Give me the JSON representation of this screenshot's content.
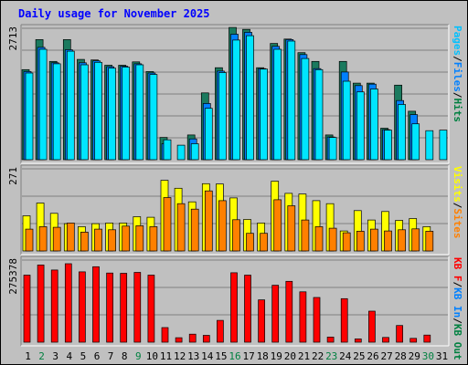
{
  "chart_data": {
    "type": "bar",
    "title": "Daily usage for November 2025",
    "categories": [
      "1",
      "2",
      "3",
      "4",
      "5",
      "6",
      "7",
      "8",
      "9",
      "10",
      "11",
      "12",
      "13",
      "14",
      "15",
      "16",
      "17",
      "18",
      "19",
      "20",
      "21",
      "22",
      "23",
      "24",
      "25",
      "26",
      "27",
      "28",
      "29",
      "30",
      "31"
    ],
    "weekend_days": [
      "2",
      "9",
      "16",
      "23",
      "30"
    ],
    "panels": [
      {
        "key": "top",
        "ymax_label": "2713",
        "ymax": 2713,
        "legend": [
          {
            "text": "Pages",
            "color": "#00c0ff"
          },
          {
            "text": "/",
            "color": "#000000"
          },
          {
            "text": "Files",
            "color": "#0080ff"
          },
          {
            "text": "/",
            "color": "#000000"
          },
          {
            "text": "Hits",
            "color": "#008040"
          }
        ],
        "series": [
          {
            "name": "Hits",
            "color": "#1a7a5e",
            "values": [
              1860,
              2480,
              2030,
              2480,
              2070,
              2060,
              1950,
              1950,
              2020,
              1820,
              460,
              0,
              510,
              1380,
              1900,
              2730,
              2690,
              1900,
              2400,
              2490,
              2210,
              2030,
              510,
              2030,
              1580,
              1580,
              650,
              1540,
              1000,
              0,
              0
            ]
          },
          {
            "name": "Files",
            "color": "#0080ff",
            "values": [
              1820,
              2320,
              2000,
              2270,
              2000,
              2040,
              1920,
              1930,
              1980,
              1790,
              330,
              0,
              430,
              1160,
              1830,
              2590,
              2630,
              1880,
              2340,
              2480,
              2170,
              1880,
              470,
              1810,
              1530,
              1560,
              620,
              1220,
              930,
              0,
              0
            ]
          },
          {
            "name": "Pages",
            "color": "#00e5ff",
            "values": [
              1790,
              2280,
              1980,
              2240,
              1960,
              2010,
              1890,
              1910,
              1960,
              1760,
              410,
              300,
              330,
              1060,
              1800,
              2470,
              2560,
              1870,
              2280,
              2450,
              2090,
              1860,
              460,
              1620,
              1400,
              1460,
              610,
              1140,
              740,
              600,
              610
            ]
          }
        ]
      },
      {
        "key": "mid",
        "ymax_label": "271",
        "ymax": 271,
        "legend": [
          {
            "text": "Visits",
            "color": "#ffff00"
          },
          {
            "text": "/",
            "color": "#000000"
          },
          {
            "text": "Sites",
            "color": "#ff8000"
          }
        ],
        "series": [
          {
            "name": "Visits",
            "color": "#ffff00",
            "values": [
              116,
              158,
              124,
              90,
              80,
              90,
              92,
              92,
              113,
              111,
              233,
              207,
              162,
              222,
              221,
              175,
              104,
              92,
              230,
              190,
              188,
              166,
              156,
              66,
              133,
              102,
              130,
              101,
              107,
              80,
              0
            ]
          },
          {
            "name": "Sites",
            "color": "#ff8000",
            "values": [
              72,
              80,
              78,
              92,
              62,
              72,
              70,
              82,
              83,
              80,
              176,
              156,
              138,
              198,
              166,
              103,
              58,
              58,
              169,
              149,
              102,
              80,
              75,
              60,
              65,
              72,
              66,
              70,
              73,
              65,
              0
            ]
          }
        ]
      },
      {
        "key": "bot",
        "ymax_label": "275378",
        "ymax": 275378,
        "legend": [
          {
            "text": "KB F",
            "color": "#ff0000"
          },
          {
            "text": "/",
            "color": "#000000"
          },
          {
            "text": "KB In",
            "color": "#0080ff"
          },
          {
            "text": "/",
            "color": "#000000"
          },
          {
            "text": "KB Out",
            "color": "#008040"
          }
        ],
        "series": [
          {
            "name": "KB F",
            "color": "#ff0000",
            "values": [
              225000,
              259000,
              242000,
              263000,
              236000,
              253000,
              232000,
              231000,
              234000,
              225000,
              49000,
              15000,
              27000,
              23000,
              73000,
              233000,
              225000,
              142000,
              191000,
              204000,
              169000,
              150000,
              17000,
              146000,
              11000,
              104000,
              16000,
              56000,
              13000,
              24000,
              0
            ]
          }
        ]
      }
    ]
  }
}
